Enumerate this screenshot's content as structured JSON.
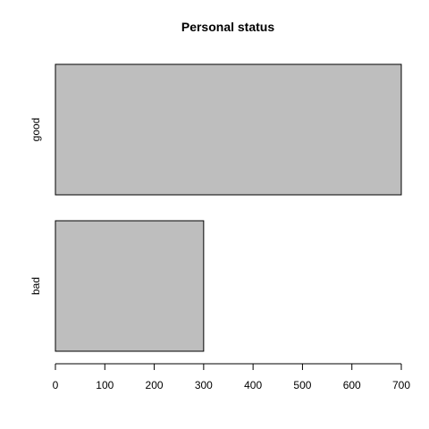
{
  "chart_data": {
    "type": "bar",
    "orientation": "horizontal",
    "title": "Personal status",
    "categories": [
      "bad",
      "good"
    ],
    "values": [
      300,
      700
    ],
    "xlim": [
      0,
      700
    ],
    "xticks": [
      0,
      100,
      200,
      300,
      400,
      500,
      600,
      700
    ],
    "xlabel": "",
    "ylabel": "",
    "grid": false,
    "bar_color": "#bebebe",
    "edge_color": "#000000"
  }
}
